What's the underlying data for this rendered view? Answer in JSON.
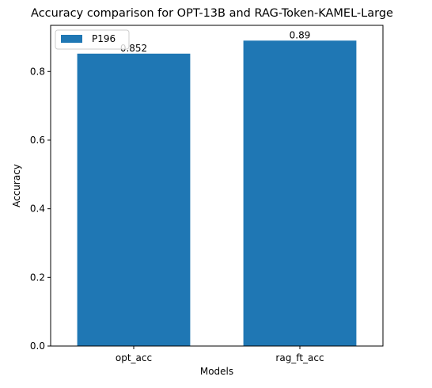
{
  "chart_data": {
    "type": "bar",
    "title": "Accuracy comparison for OPT-13B and RAG-Token-KAMEL-Large",
    "xlabel": "Models",
    "ylabel": "Accuracy",
    "categories": [
      "opt_acc",
      "rag_ft_acc"
    ],
    "series": [
      {
        "name": "P196",
        "values": [
          0.852,
          0.89
        ],
        "color": "#1f77b4"
      }
    ],
    "data_labels": [
      "0.852",
      "0.89"
    ],
    "ylim": [
      0,
      0.9345
    ],
    "yticks": [
      0.0,
      0.2,
      0.4,
      0.6,
      0.8
    ],
    "ytick_labels": [
      "0.0",
      "0.2",
      "0.4",
      "0.6",
      "0.8"
    ],
    "grid": false,
    "legend_position": "top-left"
  }
}
